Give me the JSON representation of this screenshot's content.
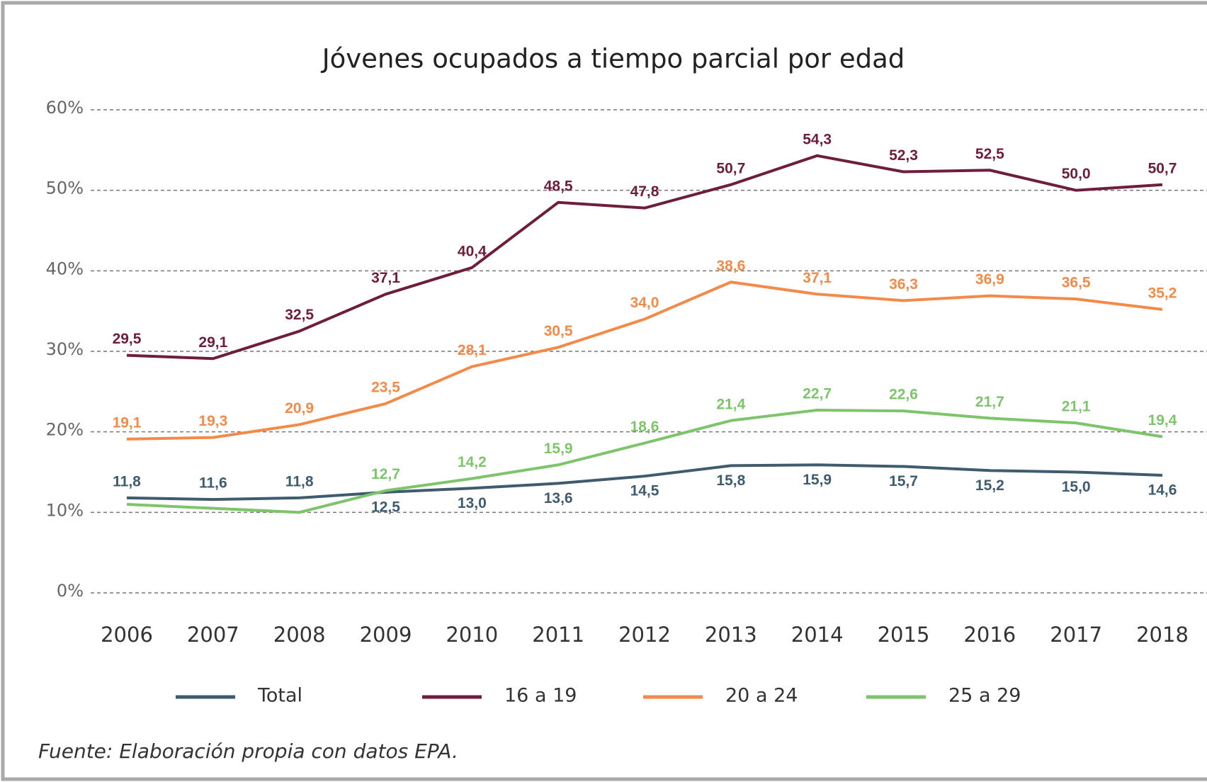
{
  "chart_data": {
    "type": "line",
    "title": "Jóvenes ocupados a tiempo parcial por edad",
    "source": "Fuente: Elaboración propia con datos EPA.",
    "x": [
      2006,
      2007,
      2008,
      2009,
      2010,
      2011,
      2012,
      2013,
      2014,
      2015,
      2016,
      2017,
      2018
    ],
    "ylim": [
      0,
      60
    ],
    "yticks": [
      {
        "value": 0,
        "label": "0%"
      },
      {
        "value": 10,
        "label": "10%"
      },
      {
        "value": 20,
        "label": "20%"
      },
      {
        "value": 30,
        "label": "30%"
      },
      {
        "value": 40,
        "label": "40%"
      },
      {
        "value": 50,
        "label": "50%"
      },
      {
        "value": 60,
        "label": "60%"
      }
    ],
    "grid": true,
    "legend": "bottom",
    "series": [
      {
        "name": "Total",
        "color": "#3f5b6e",
        "values": [
          11.8,
          11.6,
          11.8,
          12.5,
          13.0,
          13.6,
          14.5,
          15.8,
          15.9,
          15.7,
          15.2,
          15.0,
          14.6
        ],
        "value_labels": [
          "11,8",
          "11,6",
          "11,8",
          "12,5",
          "13,0",
          "13,6",
          "14,5",
          "15,8",
          "15,9",
          "15,7",
          "15,2",
          "15,0",
          "14,6"
        ]
      },
      {
        "name": "16 a 19",
        "color": "#6e1d3d",
        "values": [
          29.5,
          29.1,
          32.5,
          37.1,
          40.4,
          48.5,
          47.8,
          50.7,
          54.3,
          52.3,
          52.5,
          50.0,
          50.7
        ],
        "value_labels": [
          "29,5",
          "29,1",
          "32,5",
          "37,1",
          "40,4",
          "48,5",
          "47,8",
          "50,7",
          "54,3",
          "52,3",
          "52,5",
          "50,0",
          "50,7"
        ]
      },
      {
        "name": "20 a 24",
        "color": "#f28a4a",
        "values": [
          19.1,
          19.3,
          20.9,
          23.5,
          28.1,
          30.5,
          34.0,
          38.6,
          37.1,
          36.3,
          36.9,
          36.5,
          35.2
        ],
        "value_labels": [
          "19,1",
          "19,3",
          "20,9",
          "23,5",
          "28,1",
          "30,5",
          "34,0",
          "38,6",
          "37,1",
          "36,3",
          "36,9",
          "36,5",
          "35,2"
        ]
      },
      {
        "name": "25 a 29",
        "color": "#7dc46b",
        "values": [
          11.0,
          10.5,
          10.0,
          12.7,
          14.2,
          15.9,
          18.6,
          21.4,
          22.7,
          22.6,
          21.7,
          21.1,
          19.4
        ],
        "value_labels": [
          null,
          null,
          null,
          "12,7",
          "14,2",
          "15,9",
          "18,6",
          "21,4",
          "22,7",
          "22,6",
          "21,7",
          "21,1",
          "19,4"
        ]
      }
    ]
  }
}
